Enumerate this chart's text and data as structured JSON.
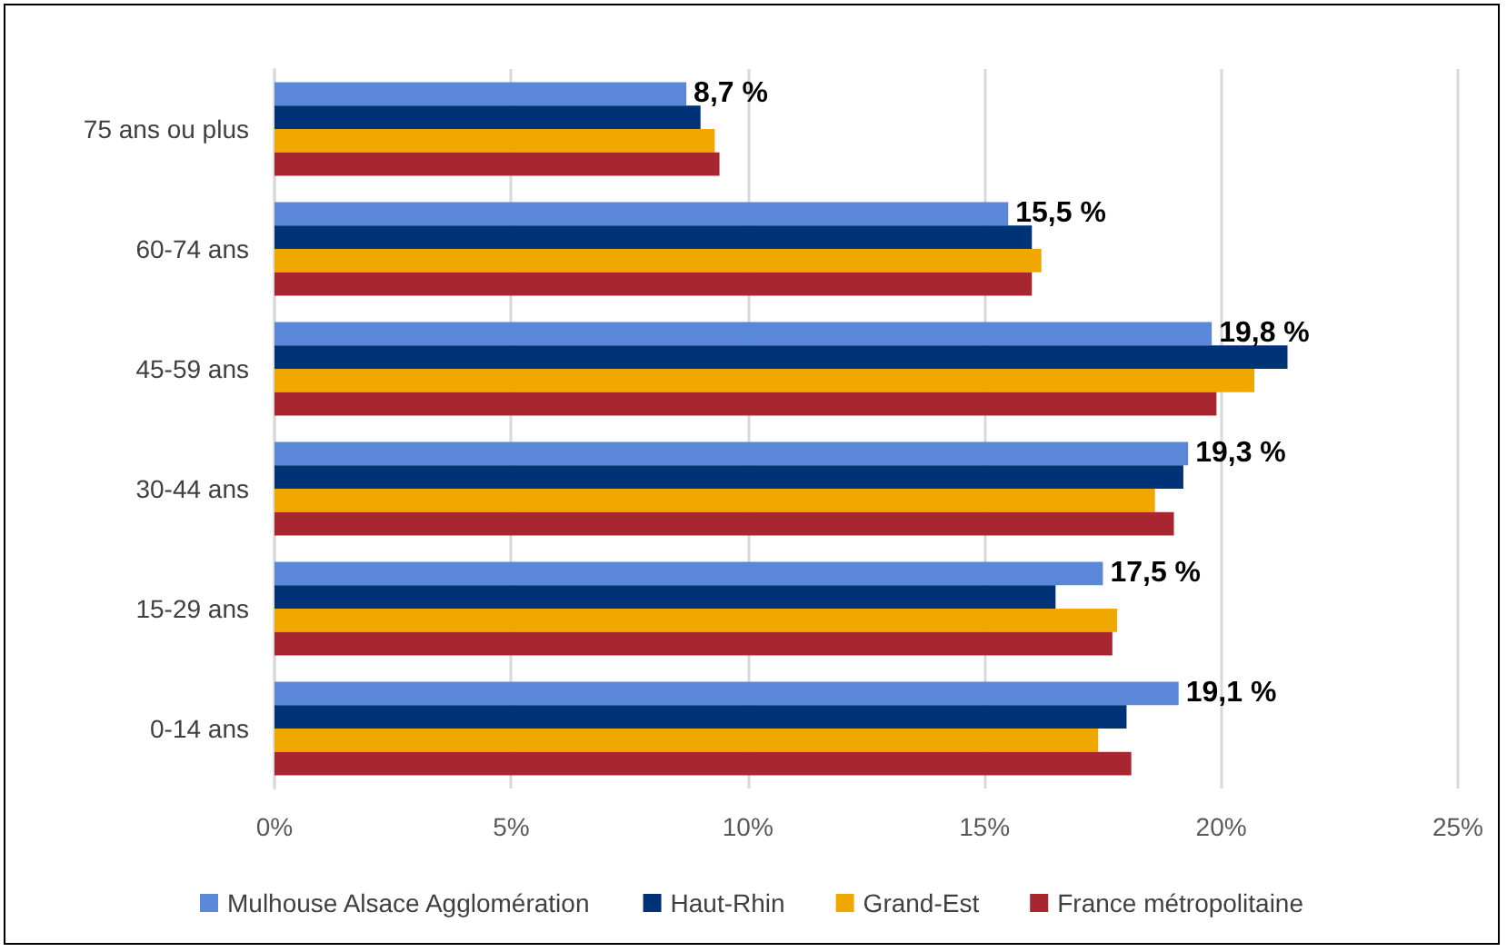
{
  "chart_data": {
    "type": "bar",
    "orientation": "horizontal",
    "categories": [
      "75 ans ou plus",
      "60-74 ans",
      "45-59 ans",
      "30-44 ans",
      "15-29 ans",
      "0-14 ans"
    ],
    "series": [
      {
        "name": "Mulhouse Alsace Agglomération",
        "color": "#5b87d9",
        "values": [
          8.7,
          15.5,
          19.8,
          19.3,
          17.5,
          19.1
        ],
        "value_labels": [
          "8,7 %",
          "15,5 %",
          "19,8 %",
          "19,3 %",
          "17,5 %",
          "19,1 %"
        ]
      },
      {
        "name": "Haut-Rhin",
        "color": "#003278",
        "values": [
          9.0,
          16.0,
          21.4,
          19.2,
          16.5,
          18.0
        ]
      },
      {
        "name": "Grand-Est",
        "color": "#f0a800",
        "values": [
          9.3,
          16.2,
          20.7,
          18.6,
          17.8,
          17.4
        ]
      },
      {
        "name": "France métropolitaine",
        "color": "#a82630",
        "values": [
          9.4,
          16.0,
          19.9,
          19.0,
          17.7,
          18.1
        ]
      }
    ],
    "xlim": [
      0,
      25
    ],
    "xticks": [
      {
        "value": 0,
        "label": "0%"
      },
      {
        "value": 5,
        "label": "5%"
      },
      {
        "value": 10,
        "label": "10%"
      },
      {
        "value": 15,
        "label": "15%"
      },
      {
        "value": 20,
        "label": "20%"
      },
      {
        "value": 25,
        "label": "25%"
      }
    ],
    "grid": "x",
    "legend": "bottom"
  }
}
